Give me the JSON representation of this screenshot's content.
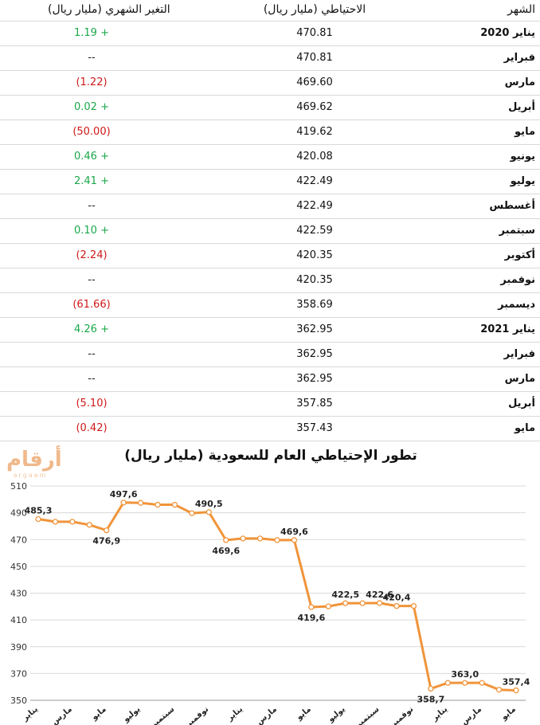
{
  "table": {
    "headers": {
      "month": "الشهر",
      "reserve": "الاحتياطي (مليار ريال)",
      "change": "التغير الشهري (مليار ريال)"
    },
    "rows": [
      {
        "month": "يناير 2020",
        "reserve": "470.81",
        "change": "1.19 +",
        "trend": "pos"
      },
      {
        "month": "فبراير",
        "reserve": "470.81",
        "change": "--",
        "trend": "neu"
      },
      {
        "month": "مارس",
        "reserve": "469.60",
        "change": "(1.22)",
        "trend": "neg"
      },
      {
        "month": "أبريل",
        "reserve": "469.62",
        "change": "0.02 +",
        "trend": "pos"
      },
      {
        "month": "مايو",
        "reserve": "419.62",
        "change": "(50.00)",
        "trend": "neg"
      },
      {
        "month": "يونيو",
        "reserve": "420.08",
        "change": "0.46 +",
        "trend": "pos"
      },
      {
        "month": "يوليو",
        "reserve": "422.49",
        "change": "2.41 +",
        "trend": "pos"
      },
      {
        "month": "أغسطس",
        "reserve": "422.49",
        "change": "--",
        "trend": "neu"
      },
      {
        "month": "سبتمبر",
        "reserve": "422.59",
        "change": "0.10 +",
        "trend": "pos"
      },
      {
        "month": "أكتوبر",
        "reserve": "420.35",
        "change": "(2.24)",
        "trend": "neg"
      },
      {
        "month": "نوفمبر",
        "reserve": "420.35",
        "change": "--",
        "trend": "neu"
      },
      {
        "month": "ديسمبر",
        "reserve": "358.69",
        "change": "(61.66)",
        "trend": "neg"
      },
      {
        "month": "يناير 2021",
        "reserve": "362.95",
        "change": "4.26 +",
        "trend": "pos"
      },
      {
        "month": "فبراير",
        "reserve": "362.95",
        "change": "--",
        "trend": "neu"
      },
      {
        "month": "مارس",
        "reserve": "362.95",
        "change": "--",
        "trend": "neu"
      },
      {
        "month": "أبريل",
        "reserve": "357.85",
        "change": "(5.10)",
        "trend": "neg"
      },
      {
        "month": "مايو",
        "reserve": "357.43",
        "change": "(0.42)",
        "trend": "neg"
      }
    ]
  },
  "logo": {
    "arabic": "أرقام",
    "latin": "argaam"
  },
  "colors": {
    "line": "#f0943a",
    "positive": "#1aa84a",
    "negative": "#d01818",
    "grid": "#d9d9d9"
  },
  "chart_data": {
    "type": "line",
    "title": "تطور الإحتياطي العام للسعودية (مليار ريال)",
    "xlabel": "",
    "ylabel": "",
    "ylim": [
      350,
      510
    ],
    "yticks": [
      350,
      370,
      390,
      410,
      430,
      450,
      470,
      490,
      510
    ],
    "grid": true,
    "x_tick_labels": [
      "يناير",
      "مارس",
      "مايو",
      "يوليو",
      "سبتمبر",
      "نوفمبر",
      "يناير",
      "مارس",
      "مايو",
      "يوليو",
      "سبتمبر",
      "نوفمبر",
      "يناير",
      "مارس",
      "مايو"
    ],
    "series": [
      {
        "values": [
          485.3,
          483.3,
          483.3,
          481.0,
          476.9,
          497.6,
          497.4,
          496.0,
          496.0,
          489.7,
          490.5,
          469.6,
          470.8,
          470.8,
          469.6,
          469.6,
          419.6,
          420.1,
          422.5,
          422.5,
          422.6,
          420.4,
          420.4,
          358.7,
          363.0,
          363.0,
          363.0,
          357.9,
          357.4
        ],
        "point_labels": [
          {
            "index": 0,
            "text": "485,3"
          },
          {
            "index": 4,
            "text": "476,9"
          },
          {
            "index": 5,
            "text": "497,6"
          },
          {
            "index": 10,
            "text": "490,5"
          },
          {
            "index": 11,
            "text": "469,6"
          },
          {
            "index": 15,
            "text": "469,6"
          },
          {
            "index": 16,
            "text": "419,6"
          },
          {
            "index": 18,
            "text": "422,5"
          },
          {
            "index": 20,
            "text": "422,6"
          },
          {
            "index": 21,
            "text": "420,4"
          },
          {
            "index": 23,
            "text": "358,7"
          },
          {
            "index": 25,
            "text": "363,0"
          },
          {
            "index": 28,
            "text": "357,4"
          }
        ]
      }
    ]
  }
}
